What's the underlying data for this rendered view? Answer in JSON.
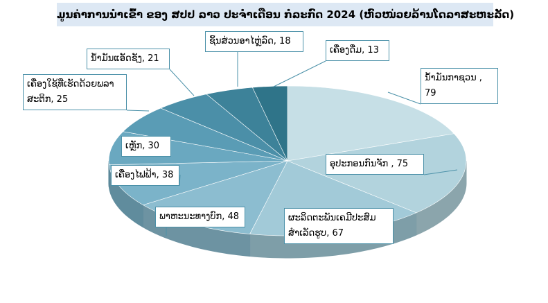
{
  "chart_data": {
    "type": "pie3d",
    "title": "ມູນຄ່າການນຳເຂົ້າ ຂອງ ສປປ ລາວ ປະຈຳເດືອນ ກໍລະກົດ 2024 (ຫົວໜ່ວຍລ້ານໂດລາສະຫະລັດ)",
    "categories": [
      "ນ້ຳມັນກາຊວນ",
      "ອຸປະກອນກົນຈັກ",
      "ຜະລິດຕະພັນເຄມີປະສົມສຳເລັດຮູບ",
      "ພາຫະນະທາງບົກ",
      "ເຄື່ອງໄຟຟ້າ",
      "ເຫຼັກ",
      "ເຄື່ອງໃຊ້ທີ່ເຮັດດ້ວຍພລາສະຕິກ",
      "ນ້ຳມັນແອັດຊັງ",
      "ຊິ້ນສ່ວນອາໄຫຼ່ລົດ",
      "ເຄື່ອງດື່ມ"
    ],
    "values": [
      79,
      75,
      67,
      48,
      38,
      30,
      25,
      21,
      18,
      13
    ],
    "value_labels": [
      " , 79",
      " , 75",
      ", 67",
      ", 48",
      ", 38",
      ", 30",
      ", 25",
      ", 21",
      ", 18",
      ", 13"
    ],
    "colors": [
      "#c6dfe6",
      "#b2d3dd",
      "#a2cad8",
      "#8cbdd0",
      "#7bb3c9",
      "#6aa8c0",
      "#5a9cb5",
      "#4b8fa8",
      "#3d8299",
      "#2f7489"
    ]
  }
}
